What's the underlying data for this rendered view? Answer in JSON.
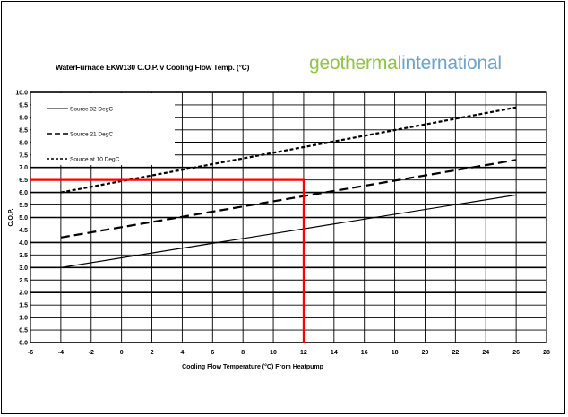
{
  "header": {
    "title": "WaterFurnace EKW130  C.O.P. v Cooling Flow Temp. (°C)",
    "logo_part1": "geothermal",
    "logo_part2": "international",
    "logo_colors": {
      "geothermal": "#8dc63f",
      "international": "#6ba4cc"
    }
  },
  "chart_data": {
    "type": "line",
    "title": "WaterFurnace EKW130  C.O.P. v Cooling Flow Temp. (°C)",
    "xlabel": "Cooling Flow Temperature (°C) From Heatpump",
    "ylabel": "C.O.P.",
    "xlim": [
      -6,
      28
    ],
    "ylim": [
      0,
      10
    ],
    "x_ticks": [
      "-6",
      "-4",
      "-2",
      "0",
      "2",
      "4",
      "6",
      "8",
      "10",
      "12",
      "14",
      "16",
      "18",
      "20",
      "22",
      "24",
      "26",
      "28"
    ],
    "y_ticks": [
      "0.0",
      "0.5",
      "1.0",
      "1.5",
      "2.0",
      "2.5",
      "3.0",
      "3.5",
      "4.0",
      "4.5",
      "5.0",
      "5.5",
      "6.0",
      "6.5",
      "7.0",
      "7.5",
      "8.0",
      "8.5",
      "9.0",
      "9.5",
      "10.0"
    ],
    "grid": true,
    "legend_position": "top-left",
    "series": [
      {
        "name": "Source 32 DegC",
        "style": "solid",
        "x": [
          -4,
          26
        ],
        "y": [
          3.0,
          5.9
        ]
      },
      {
        "name": "Source 21 DegC",
        "style": "long-dash",
        "x": [
          -4,
          26
        ],
        "y": [
          4.2,
          7.3
        ]
      },
      {
        "name": "Source at 10 DegC",
        "style": "short-dash",
        "x": [
          -4,
          26
        ],
        "y": [
          6.0,
          9.4
        ]
      }
    ],
    "annotation": {
      "color": "#ff0000",
      "x": 12,
      "y": 6.5
    }
  }
}
